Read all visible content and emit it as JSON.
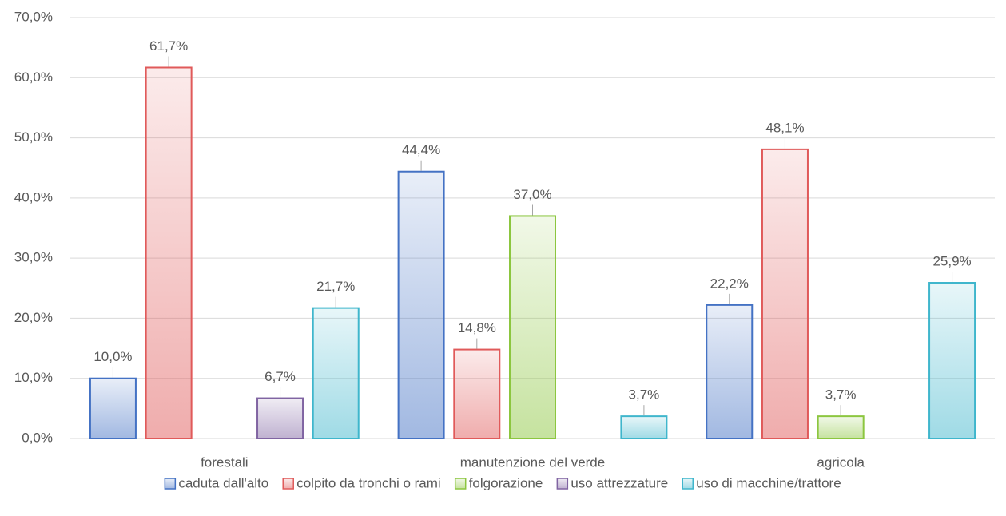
{
  "chart_data": {
    "type": "bar",
    "categories": [
      "forestali",
      "manutenzione del verde",
      "agricola"
    ],
    "series": [
      {
        "name": "caduta dall'alto",
        "color": "#4472c4",
        "values": [
          10.0,
          44.4,
          22.2
        ],
        "value_labels": [
          "10,0%",
          "44,4%",
          "22,2%"
        ]
      },
      {
        "name": "colpito da tronchi o rami",
        "color": "#e05a5a",
        "values": [
          61.7,
          14.8,
          48.1
        ],
        "value_labels": [
          "61,7%",
          "14,8%",
          "48,1%"
        ]
      },
      {
        "name": "folgorazione",
        "color": "#8cc63f",
        "values": [
          null,
          37.0,
          3.7
        ],
        "value_labels": [
          null,
          "37,0%",
          "3,7%"
        ]
      },
      {
        "name": "uso attrezzature",
        "color": "#8064a2",
        "values": [
          6.7,
          null,
          null
        ],
        "value_labels": [
          "6,7%",
          null,
          null
        ]
      },
      {
        "name": "uso di macchine/trattore",
        "color": "#3fb6cc",
        "values": [
          21.7,
          3.7,
          25.9
        ],
        "value_labels": [
          "21,7%",
          "3,7%",
          "25,9%"
        ]
      }
    ],
    "ylim": [
      0,
      70
    ],
    "yticks": [
      {
        "value": 0,
        "label": "0,0%"
      },
      {
        "value": 10,
        "label": "10,0%"
      },
      {
        "value": 20,
        "label": "20,0%"
      },
      {
        "value": 30,
        "label": "30,0%"
      },
      {
        "value": 40,
        "label": "40,0%"
      },
      {
        "value": 50,
        "label": "50,0%"
      },
      {
        "value": 60,
        "label": "60,0%"
      },
      {
        "value": 70,
        "label": "70,0%"
      }
    ],
    "grid": true,
    "legend": "bottom"
  }
}
